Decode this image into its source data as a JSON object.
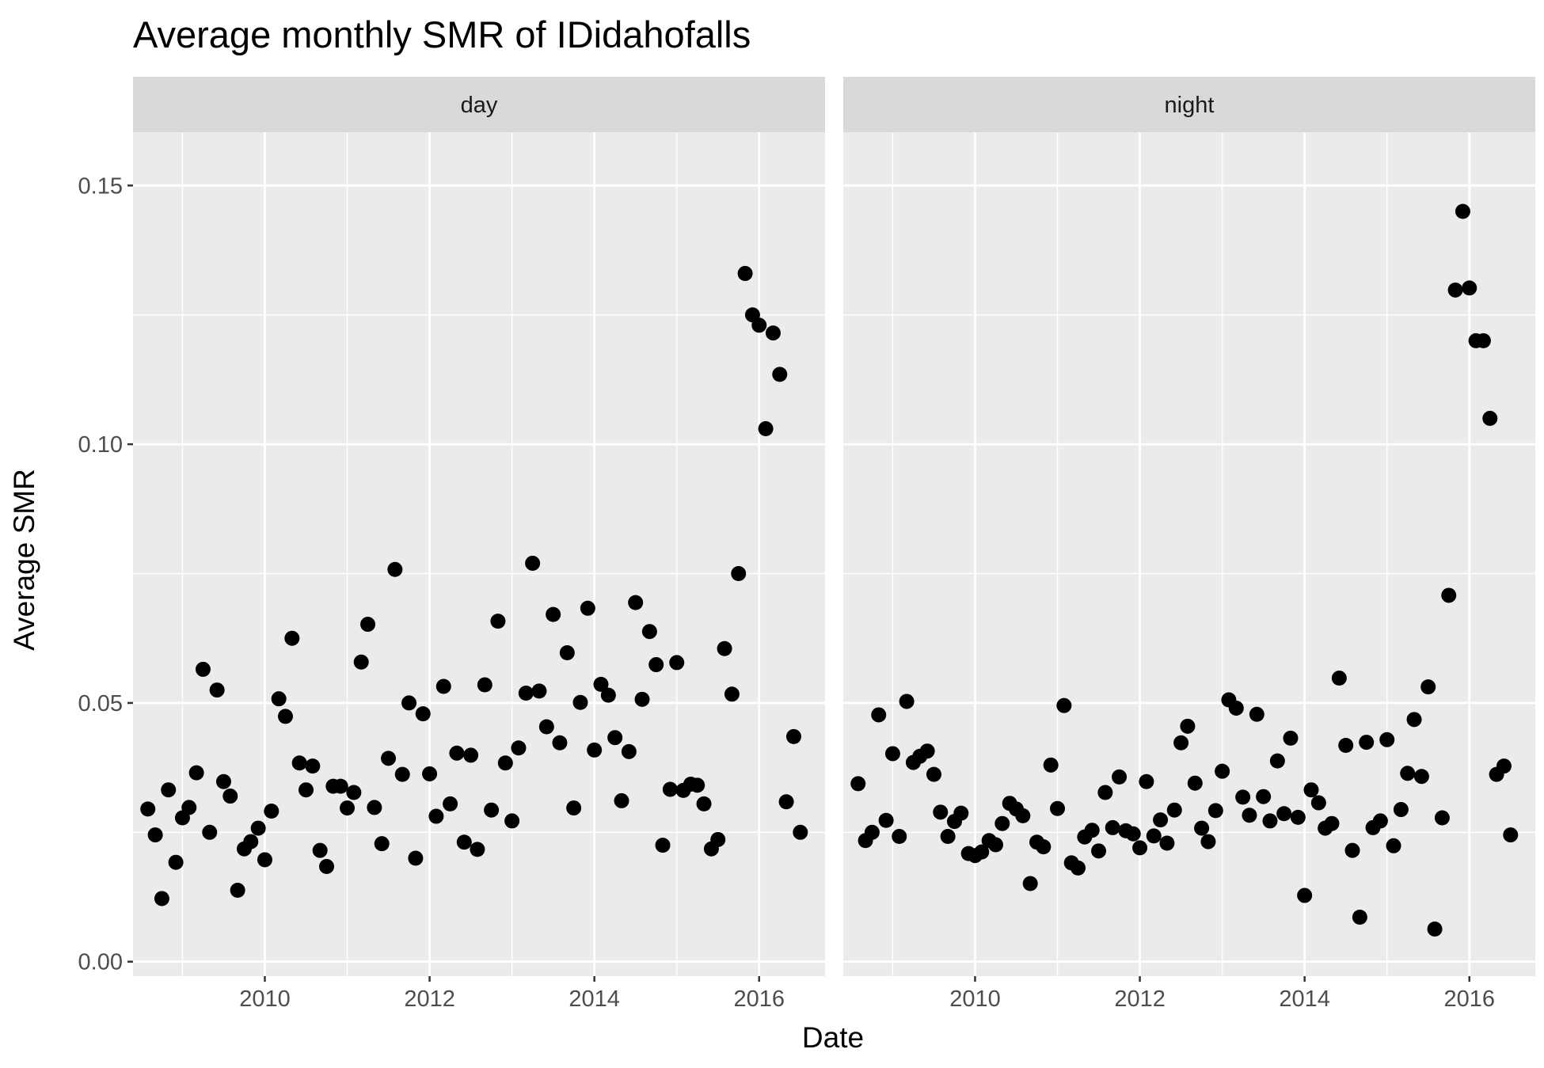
{
  "chart_data": {
    "type": "scatter",
    "title": "Average monthly SMR of IDidahofalls",
    "xlabel": "Date",
    "ylabel": "Average SMR",
    "xlim": [
      2008.4,
      2016.8
    ],
    "ylim": [
      -0.0028,
      0.1603
    ],
    "x_ticks": [
      2010,
      2012,
      2014,
      2016
    ],
    "x_tick_labels": [
      "2010",
      "2012",
      "2014",
      "2016"
    ],
    "y_ticks": [
      0,
      0.05,
      0.1,
      0.15
    ],
    "y_tick_labels": [
      "0.00",
      "0.05",
      "0.10",
      "0.15"
    ],
    "grid": true,
    "point_color": "#000000",
    "panel_background": "#ebebeb",
    "strip_background": "#d9d9d9",
    "panels": [
      {
        "strip_label": "day",
        "points": [
          [
            2008.58,
            0.0295
          ],
          [
            2008.67,
            0.0245
          ],
          [
            2008.75,
            0.0122
          ],
          [
            2008.83,
            0.0332
          ],
          [
            2008.92,
            0.0192
          ],
          [
            2009.0,
            0.0278
          ],
          [
            2009.08,
            0.0298
          ],
          [
            2009.17,
            0.0365
          ],
          [
            2009.25,
            0.0565
          ],
          [
            2009.33,
            0.025
          ],
          [
            2009.42,
            0.0525
          ],
          [
            2009.5,
            0.0348
          ],
          [
            2009.58,
            0.032
          ],
          [
            2009.67,
            0.0138
          ],
          [
            2009.75,
            0.0218
          ],
          [
            2009.83,
            0.0232
          ],
          [
            2009.92,
            0.0258
          ],
          [
            2010.0,
            0.0197
          ],
          [
            2010.08,
            0.0291
          ],
          [
            2010.17,
            0.0508
          ],
          [
            2010.25,
            0.0474
          ],
          [
            2010.33,
            0.0625
          ],
          [
            2010.42,
            0.0384
          ],
          [
            2010.5,
            0.0332
          ],
          [
            2010.58,
            0.0378
          ],
          [
            2010.67,
            0.0215
          ],
          [
            2010.75,
            0.0184
          ],
          [
            2010.83,
            0.0339
          ],
          [
            2010.92,
            0.0339
          ],
          [
            2011.0,
            0.0297
          ],
          [
            2011.08,
            0.0327
          ],
          [
            2011.17,
            0.0579
          ],
          [
            2011.25,
            0.0652
          ],
          [
            2011.33,
            0.0298
          ],
          [
            2011.42,
            0.0228
          ],
          [
            2011.5,
            0.0393
          ],
          [
            2011.58,
            0.0758
          ],
          [
            2011.67,
            0.0362
          ],
          [
            2011.75,
            0.05
          ],
          [
            2011.83,
            0.02
          ],
          [
            2011.92,
            0.0479
          ],
          [
            2012.0,
            0.0363
          ],
          [
            2012.08,
            0.0281
          ],
          [
            2012.17,
            0.0532
          ],
          [
            2012.25,
            0.0305
          ],
          [
            2012.33,
            0.0403
          ],
          [
            2012.42,
            0.0231
          ],
          [
            2012.5,
            0.0399
          ],
          [
            2012.58,
            0.0217
          ],
          [
            2012.67,
            0.0535
          ],
          [
            2012.75,
            0.0293
          ],
          [
            2012.83,
            0.0658
          ],
          [
            2012.92,
            0.0384
          ],
          [
            2013.0,
            0.0272
          ],
          [
            2013.08,
            0.0413
          ],
          [
            2013.17,
            0.0519
          ],
          [
            2013.25,
            0.077
          ],
          [
            2013.33,
            0.0523
          ],
          [
            2013.42,
            0.0454
          ],
          [
            2013.5,
            0.0671
          ],
          [
            2013.58,
            0.0423
          ],
          [
            2013.67,
            0.0597
          ],
          [
            2013.75,
            0.0297
          ],
          [
            2013.83,
            0.0501
          ],
          [
            2013.92,
            0.0683
          ],
          [
            2014.0,
            0.0409
          ],
          [
            2014.08,
            0.0536
          ],
          [
            2014.17,
            0.0515
          ],
          [
            2014.25,
            0.0433
          ],
          [
            2014.33,
            0.0311
          ],
          [
            2014.42,
            0.0406
          ],
          [
            2014.5,
            0.0694
          ],
          [
            2014.58,
            0.0507
          ],
          [
            2014.67,
            0.0638
          ],
          [
            2014.75,
            0.0574
          ],
          [
            2014.83,
            0.0225
          ],
          [
            2014.92,
            0.0333
          ],
          [
            2015.0,
            0.0578
          ],
          [
            2015.08,
            0.0331
          ],
          [
            2015.17,
            0.0343
          ],
          [
            2015.25,
            0.0341
          ],
          [
            2015.33,
            0.0305
          ],
          [
            2015.42,
            0.0218
          ],
          [
            2015.5,
            0.0236
          ],
          [
            2015.58,
            0.0605
          ],
          [
            2015.67,
            0.0517
          ],
          [
            2015.75,
            0.075
          ],
          [
            2015.83,
            0.133
          ],
          [
            2015.92,
            0.125
          ],
          [
            2016.0,
            0.123
          ],
          [
            2016.08,
            0.103
          ],
          [
            2016.17,
            0.1215
          ],
          [
            2016.25,
            0.1135
          ],
          [
            2016.33,
            0.0309
          ],
          [
            2016.42,
            0.0435
          ],
          [
            2016.5,
            0.025
          ]
        ]
      },
      {
        "strip_label": "night",
        "points": [
          [
            2008.58,
            0.0344
          ],
          [
            2008.67,
            0.0234
          ],
          [
            2008.75,
            0.025
          ],
          [
            2008.83,
            0.0477
          ],
          [
            2008.92,
            0.0273
          ],
          [
            2009.0,
            0.0402
          ],
          [
            2009.08,
            0.0242
          ],
          [
            2009.17,
            0.0503
          ],
          [
            2009.25,
            0.0385
          ],
          [
            2009.33,
            0.0397
          ],
          [
            2009.42,
            0.0407
          ],
          [
            2009.5,
            0.0362
          ],
          [
            2009.58,
            0.0289
          ],
          [
            2009.67,
            0.0242
          ],
          [
            2009.75,
            0.0271
          ],
          [
            2009.83,
            0.0287
          ],
          [
            2009.92,
            0.0209
          ],
          [
            2010.0,
            0.0205
          ],
          [
            2010.08,
            0.0212
          ],
          [
            2010.17,
            0.0234
          ],
          [
            2010.25,
            0.0226
          ],
          [
            2010.33,
            0.0267
          ],
          [
            2010.42,
            0.0306
          ],
          [
            2010.5,
            0.0295
          ],
          [
            2010.58,
            0.0282
          ],
          [
            2010.67,
            0.0151
          ],
          [
            2010.75,
            0.0231
          ],
          [
            2010.83,
            0.0222
          ],
          [
            2010.92,
            0.038
          ],
          [
            2011.0,
            0.0296
          ],
          [
            2011.08,
            0.0495
          ],
          [
            2011.17,
            0.0191
          ],
          [
            2011.25,
            0.0181
          ],
          [
            2011.33,
            0.0241
          ],
          [
            2011.42,
            0.0254
          ],
          [
            2011.5,
            0.0214
          ],
          [
            2011.58,
            0.0327
          ],
          [
            2011.67,
            0.0259
          ],
          [
            2011.75,
            0.0357
          ],
          [
            2011.83,
            0.0253
          ],
          [
            2011.92,
            0.0247
          ],
          [
            2012.0,
            0.022
          ],
          [
            2012.08,
            0.0348
          ],
          [
            2012.17,
            0.0243
          ],
          [
            2012.25,
            0.0274
          ],
          [
            2012.33,
            0.0229
          ],
          [
            2012.42,
            0.0293
          ],
          [
            2012.5,
            0.0423
          ],
          [
            2012.58,
            0.0455
          ],
          [
            2012.67,
            0.0345
          ],
          [
            2012.75,
            0.0258
          ],
          [
            2012.83,
            0.0232
          ],
          [
            2012.92,
            0.0292
          ],
          [
            2013.0,
            0.0368
          ],
          [
            2013.08,
            0.0506
          ],
          [
            2013.17,
            0.049
          ],
          [
            2013.25,
            0.0318
          ],
          [
            2013.33,
            0.0283
          ],
          [
            2013.42,
            0.0478
          ],
          [
            2013.5,
            0.0319
          ],
          [
            2013.58,
            0.0272
          ],
          [
            2013.67,
            0.0388
          ],
          [
            2013.75,
            0.0286
          ],
          [
            2013.83,
            0.0432
          ],
          [
            2013.92,
            0.0279
          ],
          [
            2014.0,
            0.0128
          ],
          [
            2014.08,
            0.0332
          ],
          [
            2014.17,
            0.0307
          ],
          [
            2014.25,
            0.0258
          ],
          [
            2014.33,
            0.0267
          ],
          [
            2014.42,
            0.0548
          ],
          [
            2014.5,
            0.0418
          ],
          [
            2014.58,
            0.0215
          ],
          [
            2014.67,
            0.0086
          ],
          [
            2014.75,
            0.0424
          ],
          [
            2014.83,
            0.0259
          ],
          [
            2014.92,
            0.0272
          ],
          [
            2015.0,
            0.0429
          ],
          [
            2015.08,
            0.0224
          ],
          [
            2015.17,
            0.0294
          ],
          [
            2015.25,
            0.0364
          ],
          [
            2015.33,
            0.0468
          ],
          [
            2015.42,
            0.0358
          ],
          [
            2015.5,
            0.0531
          ],
          [
            2015.58,
            0.0063
          ],
          [
            2015.67,
            0.0278
          ],
          [
            2015.75,
            0.0708
          ],
          [
            2015.83,
            0.1298
          ],
          [
            2015.92,
            0.145
          ],
          [
            2016.0,
            0.1302
          ],
          [
            2016.08,
            0.12
          ],
          [
            2016.17,
            0.12
          ],
          [
            2016.25,
            0.105
          ],
          [
            2016.33,
            0.0362
          ],
          [
            2016.42,
            0.0378
          ],
          [
            2016.5,
            0.0245
          ]
        ]
      }
    ]
  }
}
